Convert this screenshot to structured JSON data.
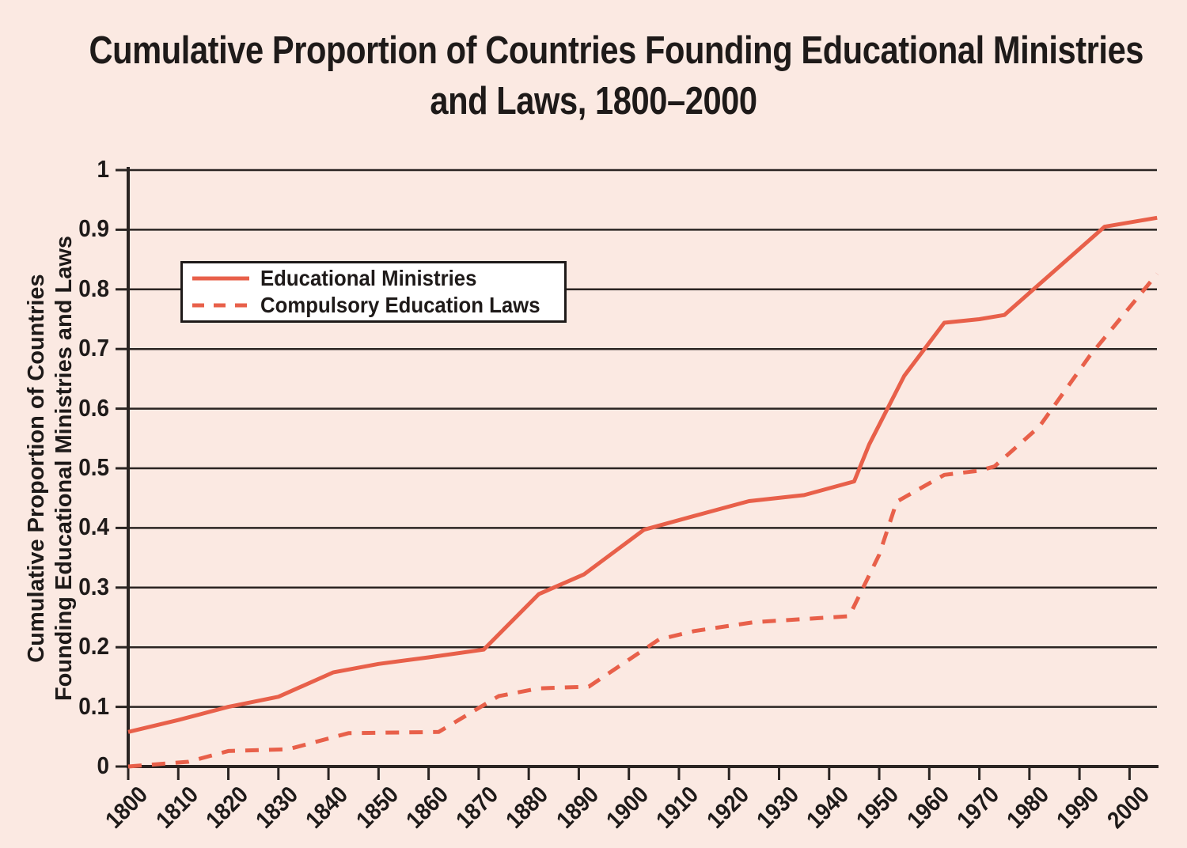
{
  "title": {
    "line1": "Cumulative Proportion of Countries Founding Educational Ministries",
    "line2": "and Laws, 1800–2000"
  },
  "y_axis": {
    "label_line1": "Cumulative Proportion of Countries",
    "label_line2": "Founding Educational Ministries and Laws",
    "tick_labels": [
      "0",
      "0.1",
      "0.2",
      "0.3",
      "0.4",
      "0.5",
      "0.6",
      "0.7",
      "0.8",
      "0.9",
      "1"
    ]
  },
  "x_axis": {
    "tick_labels": [
      "1800",
      "1810",
      "1820",
      "1830",
      "1840",
      "1850",
      "1860",
      "1870",
      "1880",
      "1890",
      "1900",
      "1910",
      "1920",
      "1930",
      "1940",
      "1950",
      "1960",
      "1970",
      "1980",
      "1990",
      "2000"
    ]
  },
  "legend": {
    "items": [
      {
        "label": "Educational Ministries",
        "style": "solid"
      },
      {
        "label": "Compulsory Education Laws",
        "style": "dashed"
      }
    ]
  },
  "colors": {
    "background": "#fbe9e2",
    "series_line": "#e8604a",
    "grid": "#2a2422",
    "text": "#1e1a19",
    "legend_background": "#ffffff"
  },
  "chart_data": {
    "type": "line",
    "title": "Cumulative Proportion of Countries Founding Educational Ministries and Laws, 1800–2000",
    "xlabel": "",
    "ylabel": "Cumulative Proportion of Countries Founding Educational Ministries and Laws",
    "xlim": [
      1800,
      2005.5
    ],
    "ylim": [
      0,
      1
    ],
    "y_tick_step": 0.1,
    "x_tick_step": 10,
    "grid": true,
    "legend_position": "upper left",
    "series": [
      {
        "name": "Educational Ministries",
        "line_style": "solid",
        "points": [
          [
            1800,
            0.058
          ],
          [
            1810,
            0.078
          ],
          [
            1820,
            0.1
          ],
          [
            1830,
            0.117
          ],
          [
            1841,
            0.158
          ],
          [
            1850,
            0.172
          ],
          [
            1860,
            0.183
          ],
          [
            1871,
            0.196
          ],
          [
            1882,
            0.289
          ],
          [
            1891,
            0.322
          ],
          [
            1903,
            0.397
          ],
          [
            1913,
            0.42
          ],
          [
            1924,
            0.445
          ],
          [
            1935,
            0.455
          ],
          [
            1945,
            0.478
          ],
          [
            1948,
            0.54
          ],
          [
            1955,
            0.655
          ],
          [
            1963,
            0.744
          ],
          [
            1970,
            0.75
          ],
          [
            1975,
            0.757
          ],
          [
            1995,
            0.905
          ],
          [
            2005.5,
            0.92
          ]
        ]
      },
      {
        "name": "Compulsory Education Laws",
        "line_style": "dashed",
        "points": [
          [
            1800,
            0.0
          ],
          [
            1812,
            0.008
          ],
          [
            1820,
            0.026
          ],
          [
            1832,
            0.029
          ],
          [
            1844,
            0.056
          ],
          [
            1862,
            0.058
          ],
          [
            1874,
            0.118
          ],
          [
            1882,
            0.131
          ],
          [
            1892,
            0.134
          ],
          [
            1906,
            0.213
          ],
          [
            1913,
            0.227
          ],
          [
            1925,
            0.242
          ],
          [
            1944,
            0.252
          ],
          [
            1950,
            0.355
          ],
          [
            1953.5,
            0.444
          ],
          [
            1963,
            0.489
          ],
          [
            1970,
            0.496
          ],
          [
            1973,
            0.503
          ],
          [
            1982,
            0.57
          ],
          [
            1992,
            0.688
          ],
          [
            2005.5,
            0.826
          ]
        ]
      }
    ]
  }
}
